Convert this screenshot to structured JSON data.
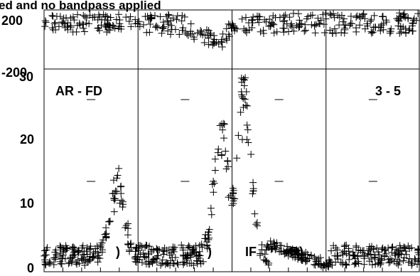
{
  "page": {
    "title": "ed and no bandpass applied"
  },
  "chart_data": [
    {
      "type": "scatter",
      "panel": "phase",
      "marker": "plus",
      "marker_color": "#000000",
      "ylim": [
        -200,
        200
      ],
      "yticks": [
        {
          "value": 200,
          "label": "200"
        },
        {
          "value": -200,
          "label": "-200"
        }
      ],
      "panels": 4,
      "if_labels": [],
      "series": [
        {
          "description_segments": [
            {
              "x0": 0.0,
              "x1": 1.0,
              "y_center": 110,
              "y_spread": 60
            },
            {
              "x0": 1.0,
              "x1": 1.45,
              "y_center": 100,
              "y_spread": 70
            },
            {
              "x0": 1.45,
              "x1": 1.9,
              "y_center": 10,
              "y_spread": 60
            },
            {
              "x0": 1.9,
              "x1": 2.0,
              "y_center": 60,
              "y_spread": 50
            },
            {
              "x0": 2.0,
              "x1": 4.0,
              "y_center": 110,
              "y_spread": 70
            }
          ]
        }
      ]
    },
    {
      "type": "scatter",
      "panel": "amplitude",
      "marker": "plus",
      "marker_color": "#000000",
      "ylim": [
        0,
        32
      ],
      "yticks": [
        {
          "value": 0,
          "label": "0"
        },
        {
          "value": 10,
          "label": "10"
        },
        {
          "value": 20,
          "label": "20"
        },
        {
          "value": 30,
          "label": "30"
        }
      ],
      "baseline_label": "AR - FD",
      "baseline_right_label": "3 - 5",
      "if_fragments": [
        ")",
        ")",
        "IF",
        "R)"
      ],
      "peaks": [
        {
          "x": 0.78,
          "y": 13
        },
        {
          "x": 1.88,
          "y": 24
        },
        {
          "x": 2.13,
          "y": 29
        }
      ]
    }
  ]
}
